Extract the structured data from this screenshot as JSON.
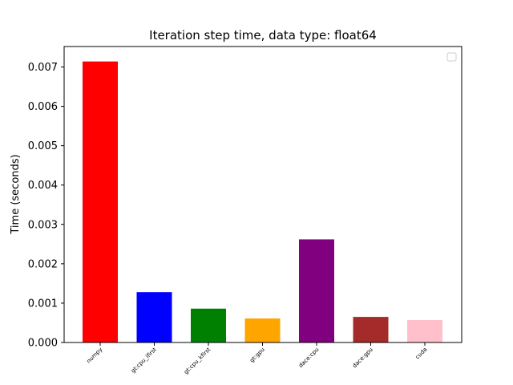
{
  "chart_data": {
    "type": "bar",
    "title": "Iteration step time, data type: float64",
    "ylabel": "Time (seconds)",
    "xlabel": "",
    "categories": [
      "numpy",
      "gt:cpu_ifirst",
      "gt:cpu_kfirst",
      "gt:gpu",
      "dace:cpu",
      "dace:gpu",
      "cuda"
    ],
    "values": [
      0.00714,
      0.00128,
      0.00086,
      0.00061,
      0.00262,
      0.00065,
      0.00057
    ],
    "colors": [
      "#ff0000",
      "#0000ff",
      "#008000",
      "#ffa500",
      "#800080",
      "#a52a2a",
      "#ffc0cb"
    ],
    "ylim": [
      0,
      0.00752
    ],
    "yticks": [
      "0.000",
      "0.001",
      "0.002",
      "0.003",
      "0.004",
      "0.005",
      "0.006",
      "0.007"
    ],
    "ytick_values": [
      0,
      0.001,
      0.002,
      0.003,
      0.004,
      0.005,
      0.006,
      0.007
    ],
    "legend": "top-right",
    "grid": false
  }
}
